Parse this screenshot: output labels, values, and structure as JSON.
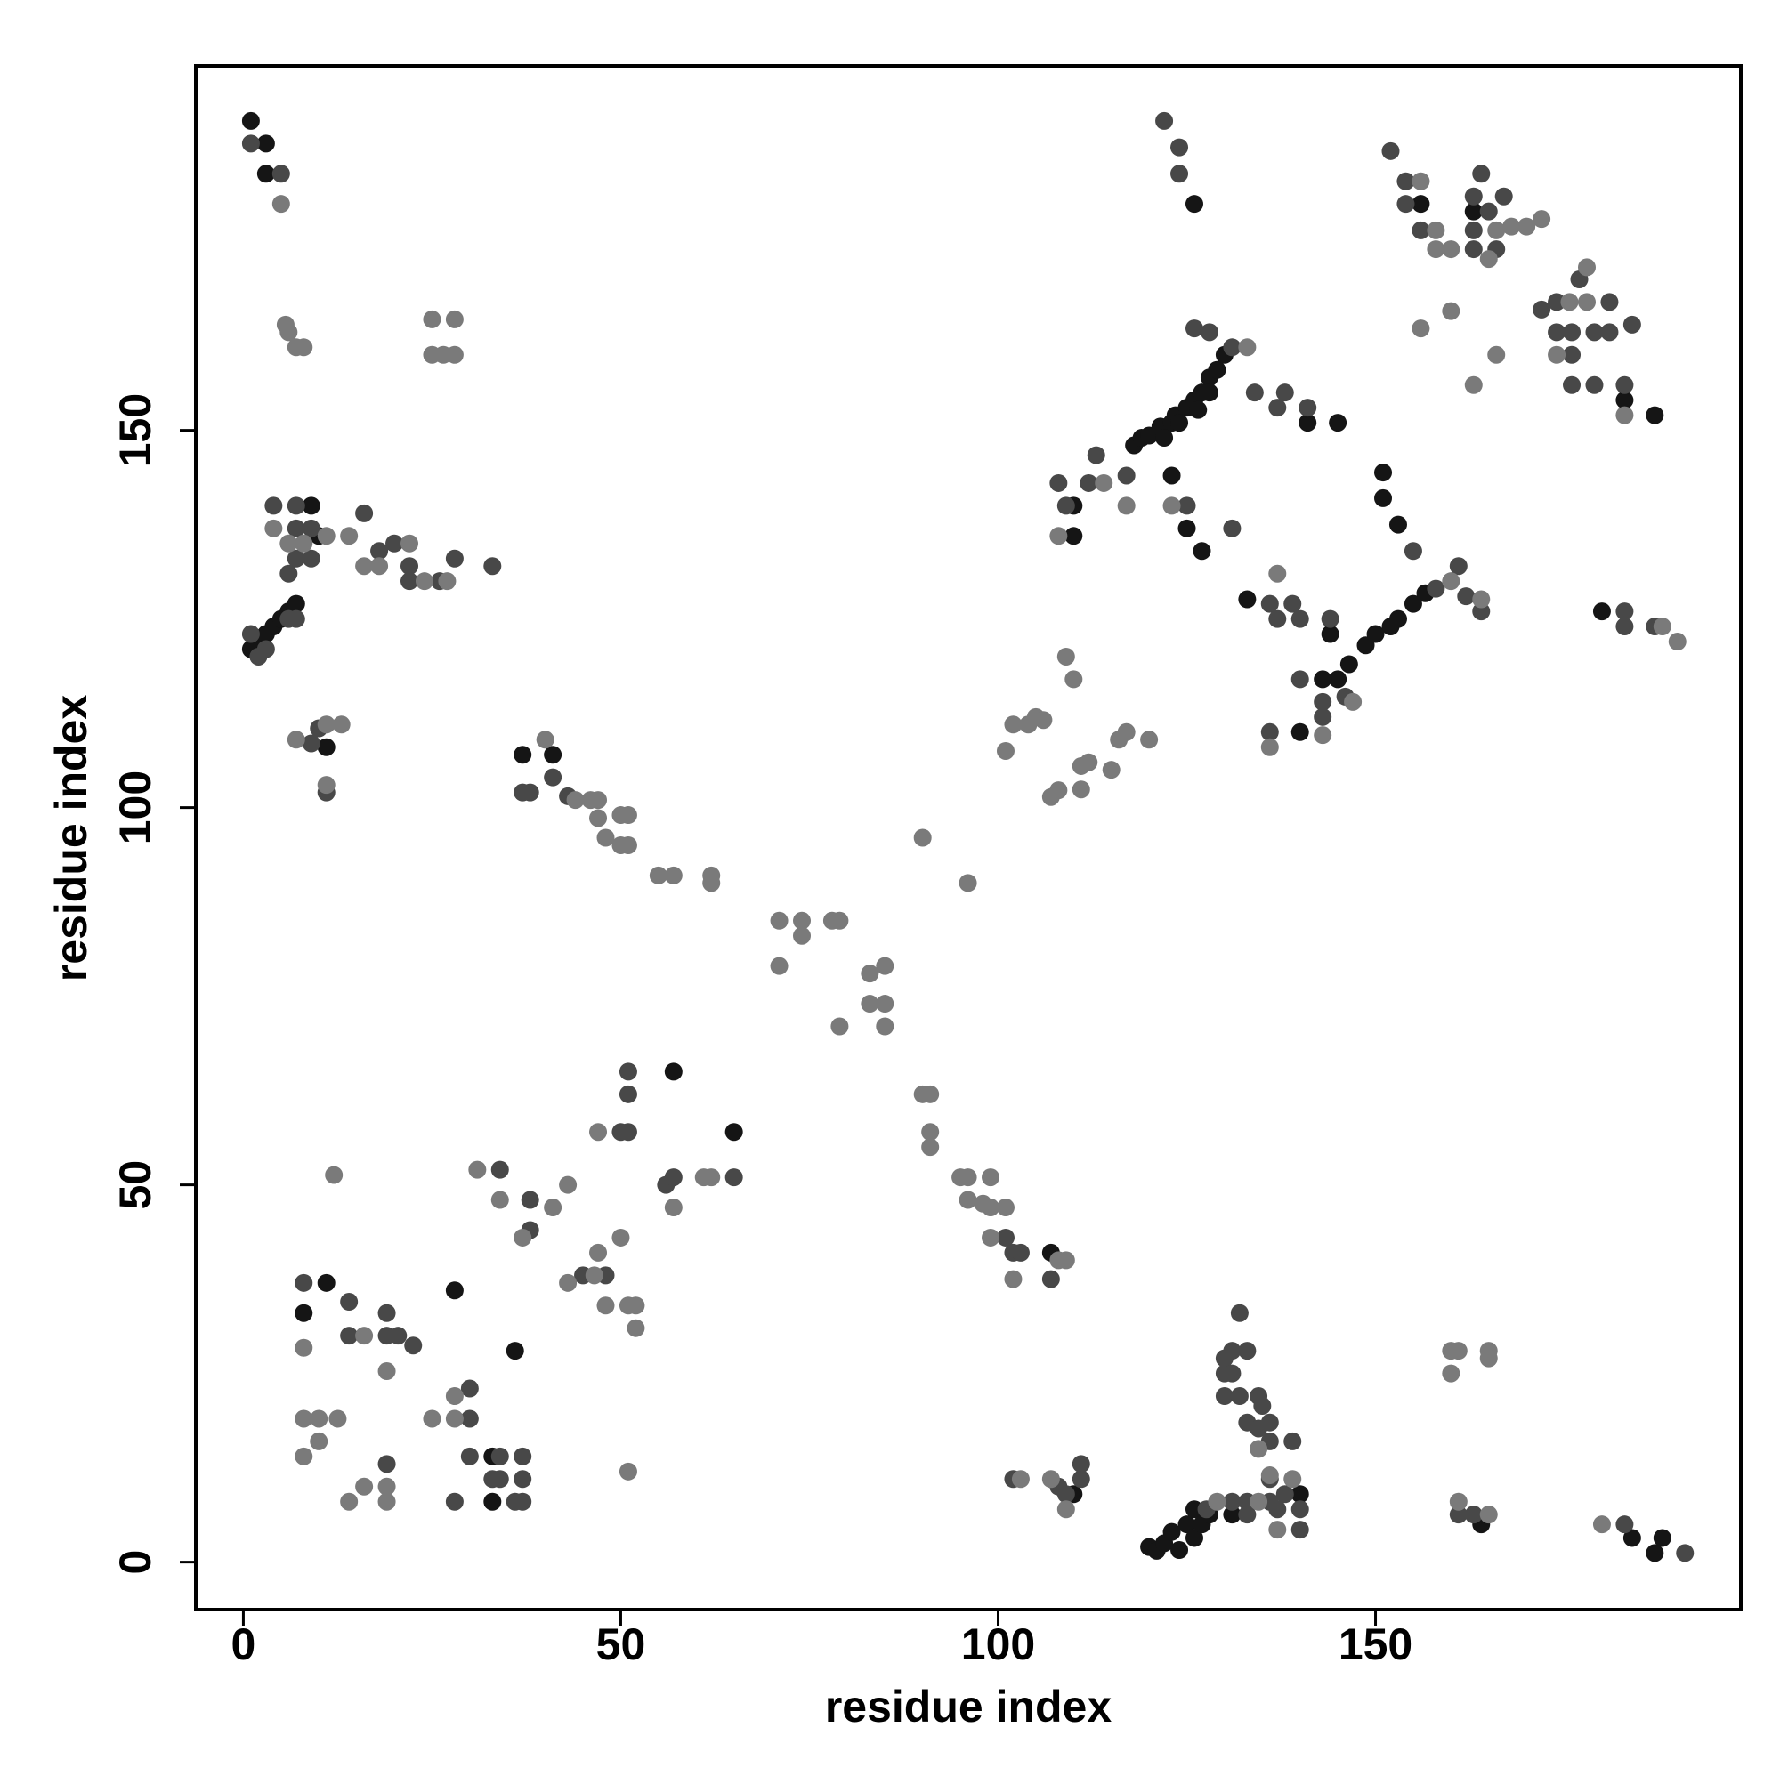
{
  "chart_data": {
    "type": "scatter",
    "xlabel": "residue index",
    "ylabel": "residue index",
    "xlim": [
      -6.3,
      198.4
    ],
    "ylim": [
      -6.3,
      198.3
    ],
    "xticks": [
      0,
      50,
      100,
      150
    ],
    "yticks": [
      0,
      50,
      100,
      150
    ],
    "grid": false,
    "series": [
      {
        "color": "#151515",
        "x": [
          1,
          3,
          3,
          1,
          2,
          3,
          4,
          5,
          6,
          7,
          9,
          10,
          11,
          33,
          33,
          36,
          28,
          11,
          8,
          118,
          119,
          120,
          121.5,
          123,
          123.5,
          125,
          126,
          127,
          128,
          129,
          130,
          122,
          124,
          126.5,
          128,
          110,
          110,
          123,
          125,
          127,
          126,
          141,
          145,
          151,
          151,
          153,
          145,
          146.5,
          148.7,
          150,
          152,
          153,
          155,
          156.6,
          133,
          144,
          143,
          140,
          180,
          183,
          187,
          156,
          163,
          120,
          121,
          122,
          123,
          124,
          125,
          126,
          126,
          127,
          128,
          131,
          140,
          184,
          187,
          188,
          164,
          107,
          110,
          65,
          57,
          37,
          41
        ],
        "values": [
          191,
          188,
          184,
          121,
          122,
          123,
          124,
          125,
          126,
          127,
          140,
          136,
          108,
          8,
          14,
          28,
          36,
          37,
          33,
          148,
          149,
          149.3,
          150.5,
          151,
          152,
          153,
          154,
          155,
          157,
          158,
          160,
          149,
          151,
          152.7,
          155,
          140,
          136,
          144,
          137,
          134,
          180,
          151,
          151,
          144.4,
          141,
          137.5,
          117,
          119,
          121.5,
          123,
          124,
          125,
          127,
          128.4,
          127.6,
          123,
          117,
          110,
          126,
          154,
          152,
          180,
          179,
          2,
          1.5,
          2.5,
          4,
          1.6,
          5,
          3.2,
          7,
          5,
          6.3,
          6.3,
          9,
          3.2,
          1.2,
          3.2,
          5,
          41,
          9,
          57,
          65,
          107,
          107
        ]
      },
      {
        "color": "#484848",
        "x": [
          1,
          5,
          2,
          3,
          1,
          4,
          7,
          7,
          9,
          7,
          9,
          6,
          7,
          6,
          9,
          10,
          11,
          16,
          18,
          20,
          22,
          22,
          28,
          33,
          26,
          37,
          38,
          41,
          43,
          108,
          109,
          112,
          113,
          117,
          125,
          131,
          128,
          126,
          131,
          134,
          137,
          141,
          136,
          137,
          139,
          140,
          144,
          140,
          143,
          146,
          136,
          143,
          155,
          158,
          161,
          162,
          164,
          183,
          183,
          187,
          138,
          152,
          154,
          154,
          156,
          124,
          124,
          163,
          164,
          163,
          163,
          165,
          166,
          167,
          174,
          176,
          176,
          179,
          181,
          184,
          179,
          183,
          176,
          172,
          174,
          177,
          181,
          122,
          8,
          14,
          14,
          19,
          19,
          20.5,
          22.5,
          30,
          30,
          30,
          33,
          34,
          34,
          37,
          37,
          37,
          36,
          28,
          19,
          34,
          38,
          38,
          45,
          48,
          50,
          51,
          51,
          51,
          56,
          57,
          65,
          101,
          102,
          103,
          107,
          102,
          108,
          109,
          111,
          111,
          127.6,
          131,
          133,
          133,
          136,
          137,
          138,
          140,
          140,
          130,
          130,
          130,
          131,
          133,
          132,
          131,
          132,
          134.5,
          135,
          133,
          134.5,
          136,
          136,
          139,
          136,
          161,
          163,
          183,
          191
        ],
        "values": [
          188,
          184,
          120,
          121,
          123,
          140,
          140,
          137,
          137,
          133,
          133,
          131,
          125,
          125,
          108.5,
          110.5,
          102,
          139,
          134,
          135,
          132,
          130,
          133,
          132,
          130,
          102,
          102,
          104,
          101.5,
          143,
          140,
          143,
          146.7,
          144,
          140,
          137,
          163,
          163.5,
          161,
          155,
          153,
          153,
          127,
          125,
          127,
          125,
          125,
          117,
          114,
          114.7,
          110,
          112,
          134,
          129,
          132,
          128,
          126,
          126,
          124,
          124,
          155,
          187,
          183,
          180,
          176.5,
          187.5,
          184,
          181,
          184,
          176.5,
          174,
          179,
          174,
          181,
          163,
          160,
          163,
          163,
          163,
          164,
          156,
          156,
          156,
          166,
          167,
          170,
          167,
          191,
          37,
          34.5,
          30,
          33,
          30,
          30,
          28.7,
          23,
          19,
          14,
          11,
          11,
          14,
          14,
          11,
          8,
          8,
          8,
          13,
          52,
          48,
          44,
          38,
          38,
          57,
          57,
          65,
          62,
          50,
          51,
          51,
          43,
          41,
          41,
          37.5,
          11,
          10,
          9,
          11,
          13,
          7,
          8,
          6.3,
          8,
          8,
          7,
          9,
          7,
          4.3,
          27,
          25,
          22,
          28,
          28,
          33,
          25,
          22,
          22,
          20.7,
          18.5,
          17.7,
          18.5,
          16,
          16,
          11,
          6.3,
          6.3,
          5,
          1.2
        ]
      },
      {
        "color": "#7a7a7a",
        "x": [
          5,
          5.6,
          6,
          7,
          8,
          25,
          28,
          25,
          26.5,
          28,
          4,
          6,
          11,
          14,
          16,
          18,
          22,
          24,
          27,
          8,
          7,
          11,
          13,
          11,
          40,
          44,
          46,
          47,
          47,
          48,
          50,
          51,
          50,
          51,
          55,
          57,
          62,
          62,
          71,
          71,
          74,
          74,
          78,
          79,
          79,
          83,
          85,
          83,
          85,
          85,
          90,
          96,
          101,
          102,
          104,
          105,
          106,
          107,
          108,
          109,
          110,
          111,
          111,
          112,
          115,
          116,
          117,
          120,
          108,
          114,
          117,
          123,
          133,
          137,
          143,
          136,
          147,
          160,
          164,
          188,
          190,
          158,
          158,
          160,
          156,
          160,
          156,
          166,
          163,
          165,
          166,
          168,
          170,
          172,
          175.7,
          178,
          178,
          174,
          183,
          8,
          8,
          10,
          12.5,
          10,
          8,
          12,
          16,
          19,
          25,
          28,
          28,
          16,
          14,
          19,
          19,
          31,
          34,
          37,
          41,
          43,
          43,
          46.5,
          47,
          48,
          47,
          50,
          51,
          52,
          52,
          51,
          57,
          61,
          62,
          90,
          91,
          91,
          91,
          95,
          96,
          96,
          98,
          99,
          99,
          99,
          101,
          102,
          108,
          109,
          103,
          107,
          109,
          129,
          134.5,
          137,
          134.5,
          160,
          161,
          160,
          165,
          165,
          161,
          165,
          180,
          139,
          136
        ],
        "values": [
          180,
          164,
          163,
          161,
          161,
          164.7,
          164.7,
          160,
          160,
          160,
          137,
          135,
          136,
          136,
          132,
          132,
          135,
          130,
          130,
          135,
          109,
          111,
          111,
          103,
          109,
          101,
          101,
          101,
          98.6,
          96,
          99,
          99,
          95,
          95,
          91,
          91,
          91,
          90,
          85,
          79,
          85,
          83,
          85,
          85,
          71,
          78,
          79,
          74,
          74,
          71,
          96,
          90,
          107.5,
          111,
          111,
          112,
          111.6,
          101.4,
          102.3,
          120,
          117,
          105.5,
          102.4,
          106,
          105,
          109,
          110,
          109,
          136,
          143,
          140,
          140,
          161,
          131,
          109.6,
          108,
          114,
          130,
          127.6,
          124,
          122,
          176.5,
          174,
          174,
          183,
          165.8,
          163.5,
          160,
          156,
          172.7,
          176.5,
          177,
          177,
          178,
          167,
          171.6,
          167,
          160,
          152,
          28.4,
          19,
          19,
          19,
          16,
          14,
          51.3,
          30,
          25.3,
          19,
          22,
          19,
          10,
          8,
          10,
          8,
          52,
          48,
          43,
          47,
          50,
          37,
          38,
          41,
          34,
          57,
          43,
          34,
          34,
          31,
          12,
          47,
          51,
          51,
          62,
          62,
          57,
          55,
          51,
          51,
          48,
          47.5,
          51,
          47,
          43,
          47,
          37.5,
          40,
          40,
          11,
          11,
          7,
          8,
          15,
          4.3,
          8,
          28,
          28,
          25,
          28,
          27,
          8,
          6.3,
          5,
          11,
          11.5
        ]
      }
    ]
  }
}
